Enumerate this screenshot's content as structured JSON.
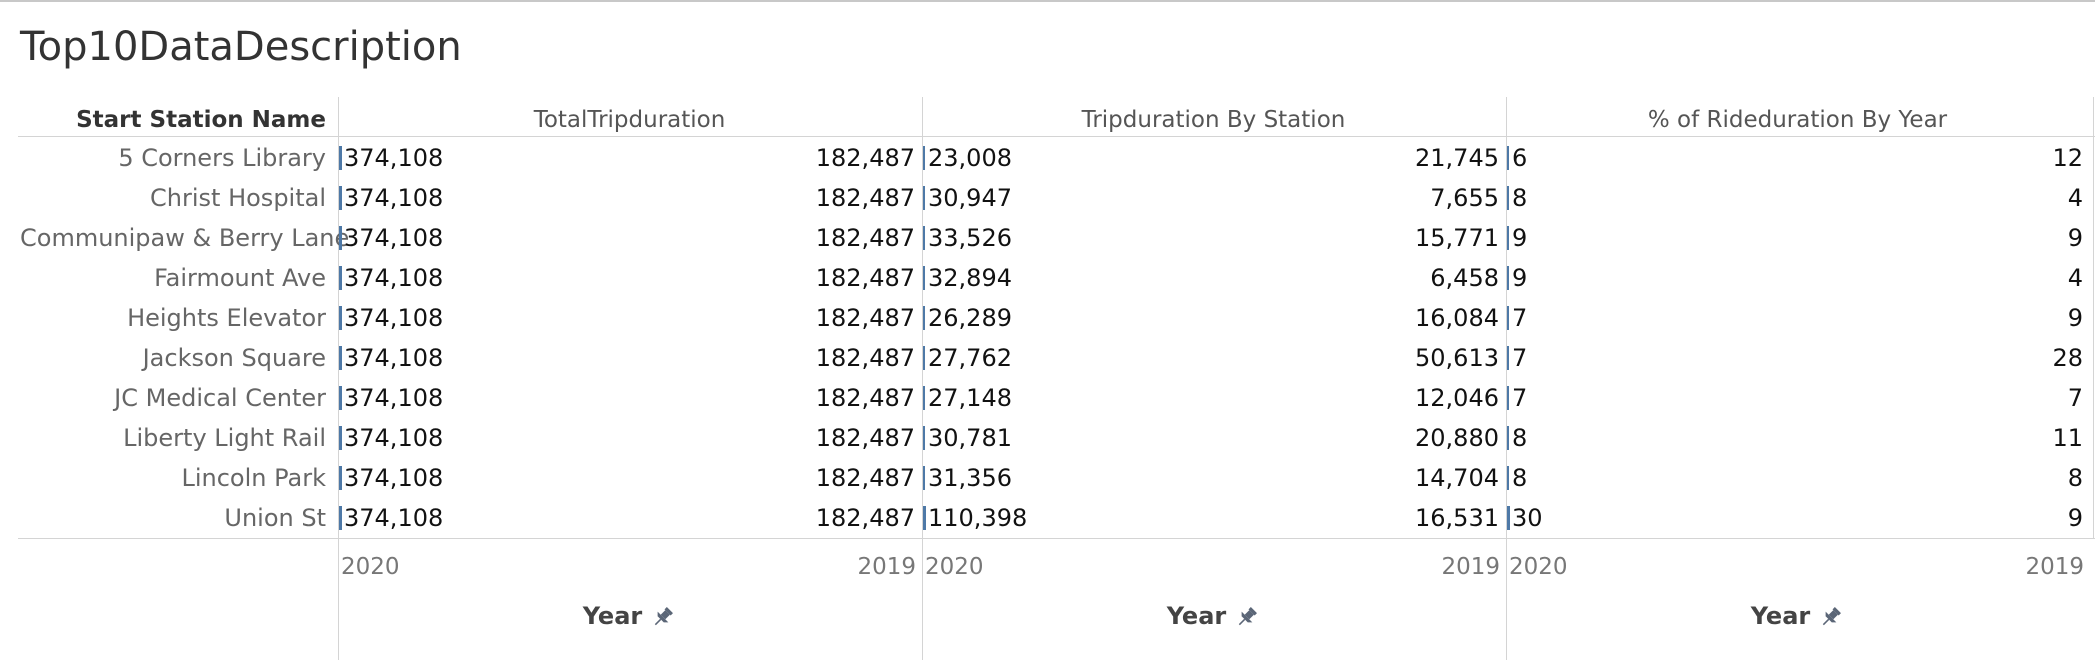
{
  "title": "Top10DataDescription",
  "chart_data": {
    "type": "bar",
    "row_header": "Start Station Name",
    "categories": [
      "5 Corners Library",
      "Christ Hospital",
      "Communipaw & Berry Lane",
      "Fairmount Ave",
      "Heights Elevator",
      "Jackson Square",
      "JC Medical Center",
      "Liberty Light Rail",
      "Lincoln Park",
      "Union St"
    ],
    "x_axis": {
      "label": "Year",
      "tick_labels": [
        "2020",
        "2019"
      ],
      "pinned_icon": "pin-icon"
    },
    "panels": [
      {
        "title": "TotalTripduration",
        "series": [
          {
            "name": "2020",
            "values": [
              374108,
              374108,
              374108,
              374108,
              374108,
              374108,
              374108,
              374108,
              374108,
              374108
            ]
          },
          {
            "name": "2019",
            "values": [
              182487,
              182487,
              182487,
              182487,
              182487,
              182487,
              182487,
              182487,
              182487,
              182487
            ]
          }
        ]
      },
      {
        "title": "Tripduration By Station",
        "series": [
          {
            "name": "2020",
            "values": [
              23008,
              30947,
              33526,
              32894,
              26289,
              27762,
              27148,
              30781,
              31356,
              110398
            ]
          },
          {
            "name": "2019",
            "values": [
              21745,
              7655,
              15771,
              6458,
              16084,
              50613,
              12046,
              20880,
              14704,
              16531
            ]
          }
        ]
      },
      {
        "title": "% of Rideduration By Year",
        "series": [
          {
            "name": "2020",
            "values": [
              6,
              8,
              9,
              9,
              7,
              7,
              7,
              8,
              8,
              30
            ]
          },
          {
            "name": "2019",
            "values": [
              12,
              4,
              9,
              4,
              9,
              28,
              7,
              11,
              8,
              9
            ]
          }
        ]
      }
    ],
    "bar_color": "#4e79a7",
    "grid": false
  }
}
